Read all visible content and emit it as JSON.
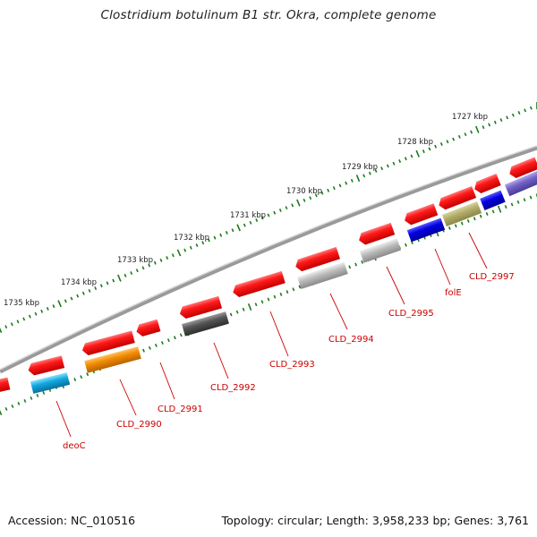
{
  "title": "Clostridium botulinum B1 str. Okra, complete genome",
  "footer": {
    "accession": "Accession: NC_010516",
    "summary": "Topology: circular; Length: 3,958,233 bp; Genes: 3,761"
  },
  "ruler_labels": [
    "1727 kbp",
    "1728 kbp",
    "1729 kbp",
    "1730 kbp",
    "1731 kbp",
    "1732 kbp",
    "1733 kbp",
    "1734 kbp",
    "1735 kbp"
  ],
  "gene_labels": [
    "CLD_2997",
    "folE",
    "CLD_2995",
    "CLD_2994",
    "CLD_2993",
    "CLD_2992",
    "CLD_2991",
    "CLD_2990",
    "deoC"
  ],
  "colors": {
    "strand_red": "#ee1111",
    "backbone": "#8a8a8a",
    "tick": "#1a7a1a",
    "label": "#cc0000",
    "blue": "#0000dd",
    "olive": "#b5b070",
    "orange": "#f08c00",
    "cyan": "#11aadd",
    "dark_gray": "#555555",
    "light_gray": "#b8b8b8",
    "lavender": "#7060c0"
  }
}
